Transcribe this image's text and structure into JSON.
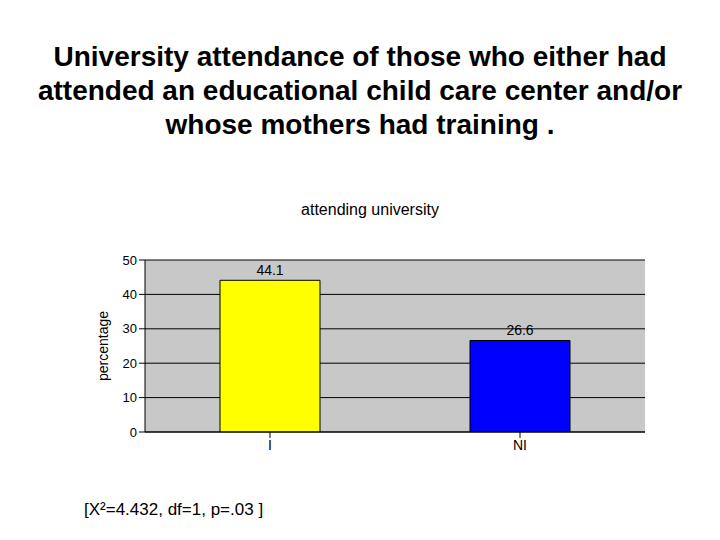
{
  "chart_data": {
    "type": "bar",
    "title": "University attendance of those who either had attended an educational child care center and/or whose mothers had training .",
    "subtitle": "attending university",
    "ylabel": "percentage",
    "categories": [
      "I",
      "NI"
    ],
    "values": [
      44.1,
      26.6
    ],
    "colors": [
      "#ffff00",
      "#0000ff"
    ],
    "ylim": [
      0,
      50
    ],
    "yticks": [
      0,
      10,
      20,
      30,
      40,
      50
    ],
    "grid": true,
    "data_labels": true,
    "annotation": "[X²=4.432, df=1, p=.03 ]"
  }
}
